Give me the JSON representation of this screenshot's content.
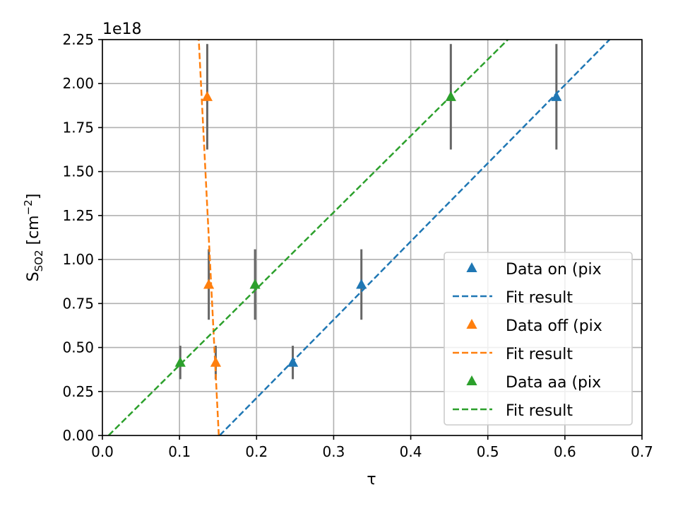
{
  "chart_data": {
    "type": "scatter",
    "title": "",
    "xlabel": "τ",
    "ylabel": {
      "main": "S",
      "sub": "SO2",
      "unit_pre": " [cm",
      "unit_sup": "−2",
      "unit_post": "]"
    },
    "y_offset_label": "1e18",
    "xlim": [
      0.0,
      0.7
    ],
    "ylim": [
      0.0,
      2.25
    ],
    "x_ticks": [
      0.0,
      0.1,
      0.2,
      0.3,
      0.4,
      0.5,
      0.6,
      0.7
    ],
    "x_tick_labels": [
      "0.0",
      "0.1",
      "0.2",
      "0.3",
      "0.4",
      "0.5",
      "0.6",
      "0.7"
    ],
    "y_ticks": [
      0.0,
      0.25,
      0.5,
      0.75,
      1.0,
      1.25,
      1.5,
      1.75,
      2.0,
      2.25
    ],
    "y_tick_labels": [
      "0.00",
      "0.25",
      "0.50",
      "0.75",
      "1.00",
      "1.25",
      "1.50",
      "1.75",
      "2.00",
      "2.25"
    ],
    "grid": true,
    "legend_position": "lower-right",
    "series": [
      {
        "name": "Data on (pix",
        "color": "#1f77b4",
        "x": [
          0.247,
          0.336,
          0.589
        ],
        "y": [
          0.415,
          0.858,
          1.925
        ],
        "yerr": [
          0.095,
          0.2,
          0.3
        ],
        "fit_name": "Fit result",
        "fit": {
          "x": [
            0.152,
            0.658
          ],
          "y": [
            0.0,
            2.25
          ]
        }
      },
      {
        "name": "Data off (pix",
        "color": "#ff7f0e",
        "x": [
          0.147,
          0.138,
          0.136
        ],
        "y": [
          0.415,
          0.858,
          1.925
        ],
        "yerr": [
          0.095,
          0.2,
          0.3
        ],
        "fit_name": "Fit result",
        "fit": {
          "x": [
            0.151,
            0.125
          ],
          "y": [
            0.0,
            2.25
          ]
        }
      },
      {
        "name": "Data aa (pix",
        "color": "#2ca02c",
        "x": [
          0.101,
          0.198,
          0.452
        ],
        "y": [
          0.415,
          0.858,
          1.925
        ],
        "yerr": [
          0.095,
          0.2,
          0.3
        ],
        "fit_name": "Fit result",
        "fit": {
          "x": [
            0.008,
            0.526
          ],
          "y": [
            0.0,
            2.25
          ]
        }
      }
    ]
  }
}
